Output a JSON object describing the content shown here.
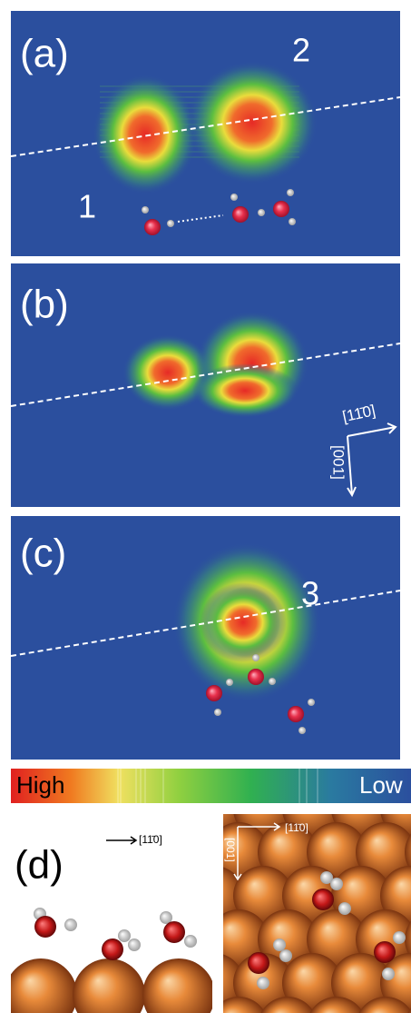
{
  "panels": [
    {
      "label": "(a)",
      "annotations": [
        "2",
        "1"
      ]
    },
    {
      "label": "(b)",
      "directions": [
        "[11̄0]",
        "[001]"
      ]
    },
    {
      "label": "(c)",
      "annotations": [
        "3"
      ]
    }
  ],
  "colorbar": {
    "high": "High",
    "low": "Low"
  },
  "panel_d": {
    "label": "(d)",
    "side_direction": "[11̄0]",
    "top_directions": [
      "[11̄0]",
      "[001]"
    ]
  }
}
